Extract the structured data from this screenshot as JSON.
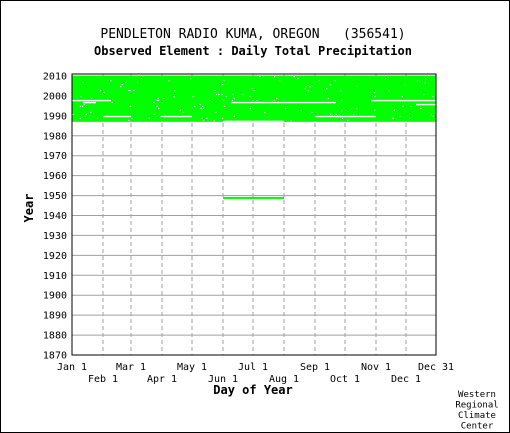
{
  "chart_data": {
    "type": "scatter",
    "title": "PENDLETON RADIO KUMA, OREGON   (356541)",
    "subtitle": "Observed Element : Daily Total Precipitation",
    "xlabel": "Day of Year",
    "ylabel": "Year",
    "xlim": [
      1,
      365
    ],
    "ylim": [
      1870,
      2011
    ],
    "grid": true,
    "series_color": "#00ff00",
    "y_ticks": [
      "1870",
      "1880",
      "1890",
      "1900",
      "1910",
      "1920",
      "1930",
      "1940",
      "1950",
      "1960",
      "1970",
      "1980",
      "1990",
      "2000",
      "2010"
    ],
    "x_ticks_top": [
      {
        "label": "Jan 1",
        "day": 1
      },
      {
        "label": "Mar 1",
        "day": 60
      },
      {
        "label": "May 1",
        "day": 121
      },
      {
        "label": "Jul 1",
        "day": 182
      },
      {
        "label": "Sep 1",
        "day": 244
      },
      {
        "label": "Nov 1",
        "day": 305
      },
      {
        "label": "Dec 31",
        "day": 365
      }
    ],
    "x_ticks_bottom": [
      {
        "label": "Feb 1",
        "day": 32
      },
      {
        "label": "Apr 1",
        "day": 91
      },
      {
        "label": "Jun 1",
        "day": 152
      },
      {
        "label": "Aug 1",
        "day": 213
      },
      {
        "label": "Oct 1",
        "day": 274
      },
      {
        "label": "Dec 1",
        "day": 335
      }
    ],
    "data_bands": [
      {
        "year_start": 1987,
        "year_end": 2010,
        "day_start": 1,
        "day_end": 365
      },
      {
        "year_start": 1948.5,
        "year_end": 1949.3,
        "day_start": 152,
        "day_end": 213
      }
    ]
  },
  "footer": {
    "lines": [
      "Western",
      "Regional",
      "Climate",
      "Center"
    ]
  }
}
